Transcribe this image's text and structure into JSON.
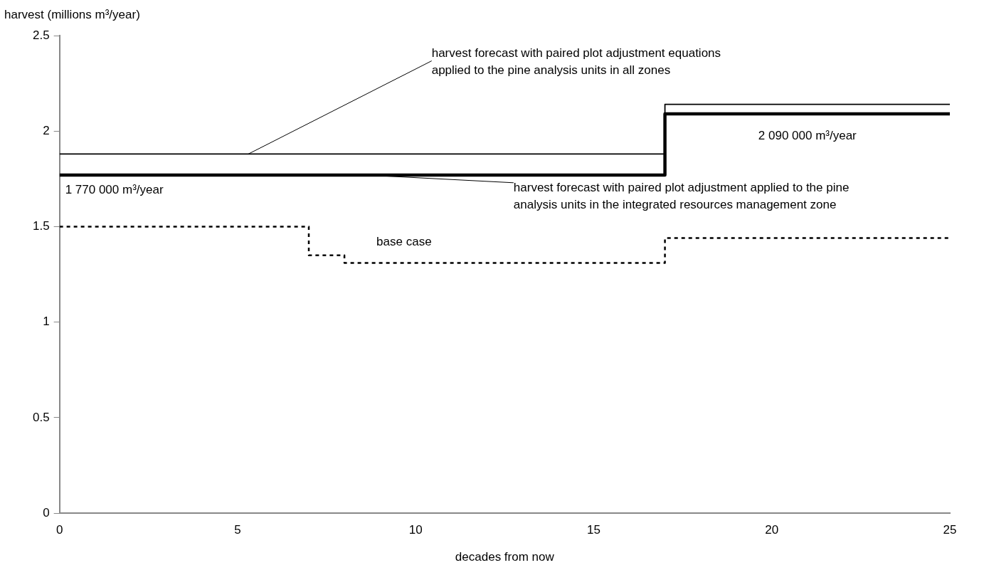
{
  "chart_data": {
    "type": "step",
    "xlabel": "decades from now",
    "ylabel": "harvest (millions m³/year)",
    "xlim": [
      0,
      25
    ],
    "xticks": [
      0,
      5,
      10,
      15,
      20,
      25
    ],
    "ylim": [
      0,
      2.5
    ],
    "yticks": [
      0,
      0.5,
      1,
      1.5,
      2,
      2.5
    ],
    "grid": false,
    "legend": false,
    "marker": "none",
    "series": [
      {
        "name": "harvest forecast with paired plot adjustment equations applied to the pine analysis units in all zones",
        "color": "#000000",
        "line_style": "solid",
        "x": [
          0,
          17,
          25
        ],
        "values": [
          1.88,
          2.14,
          2.14
        ]
      },
      {
        "name": "harvest forecast with paired plot adjustment applied to the pine analysis units in the integrated resources management zone",
        "color": "#000000",
        "line_style": "solid",
        "x": [
          0,
          17,
          25
        ],
        "values": [
          1.77,
          2.09,
          2.09
        ]
      },
      {
        "name": "base case",
        "color": "#000000",
        "line_style": "dotted",
        "x": [
          0,
          7,
          8,
          17,
          25
        ],
        "values": [
          1.5,
          1.35,
          1.31,
          1.44,
          1.44
        ]
      }
    ],
    "annotations": [
      {
        "text": "1 770 000 m³/year",
        "x": 0,
        "y": 1.77
      },
      {
        "text": "2 090 000 m³/year",
        "x": 21,
        "y": 2.09
      }
    ]
  }
}
